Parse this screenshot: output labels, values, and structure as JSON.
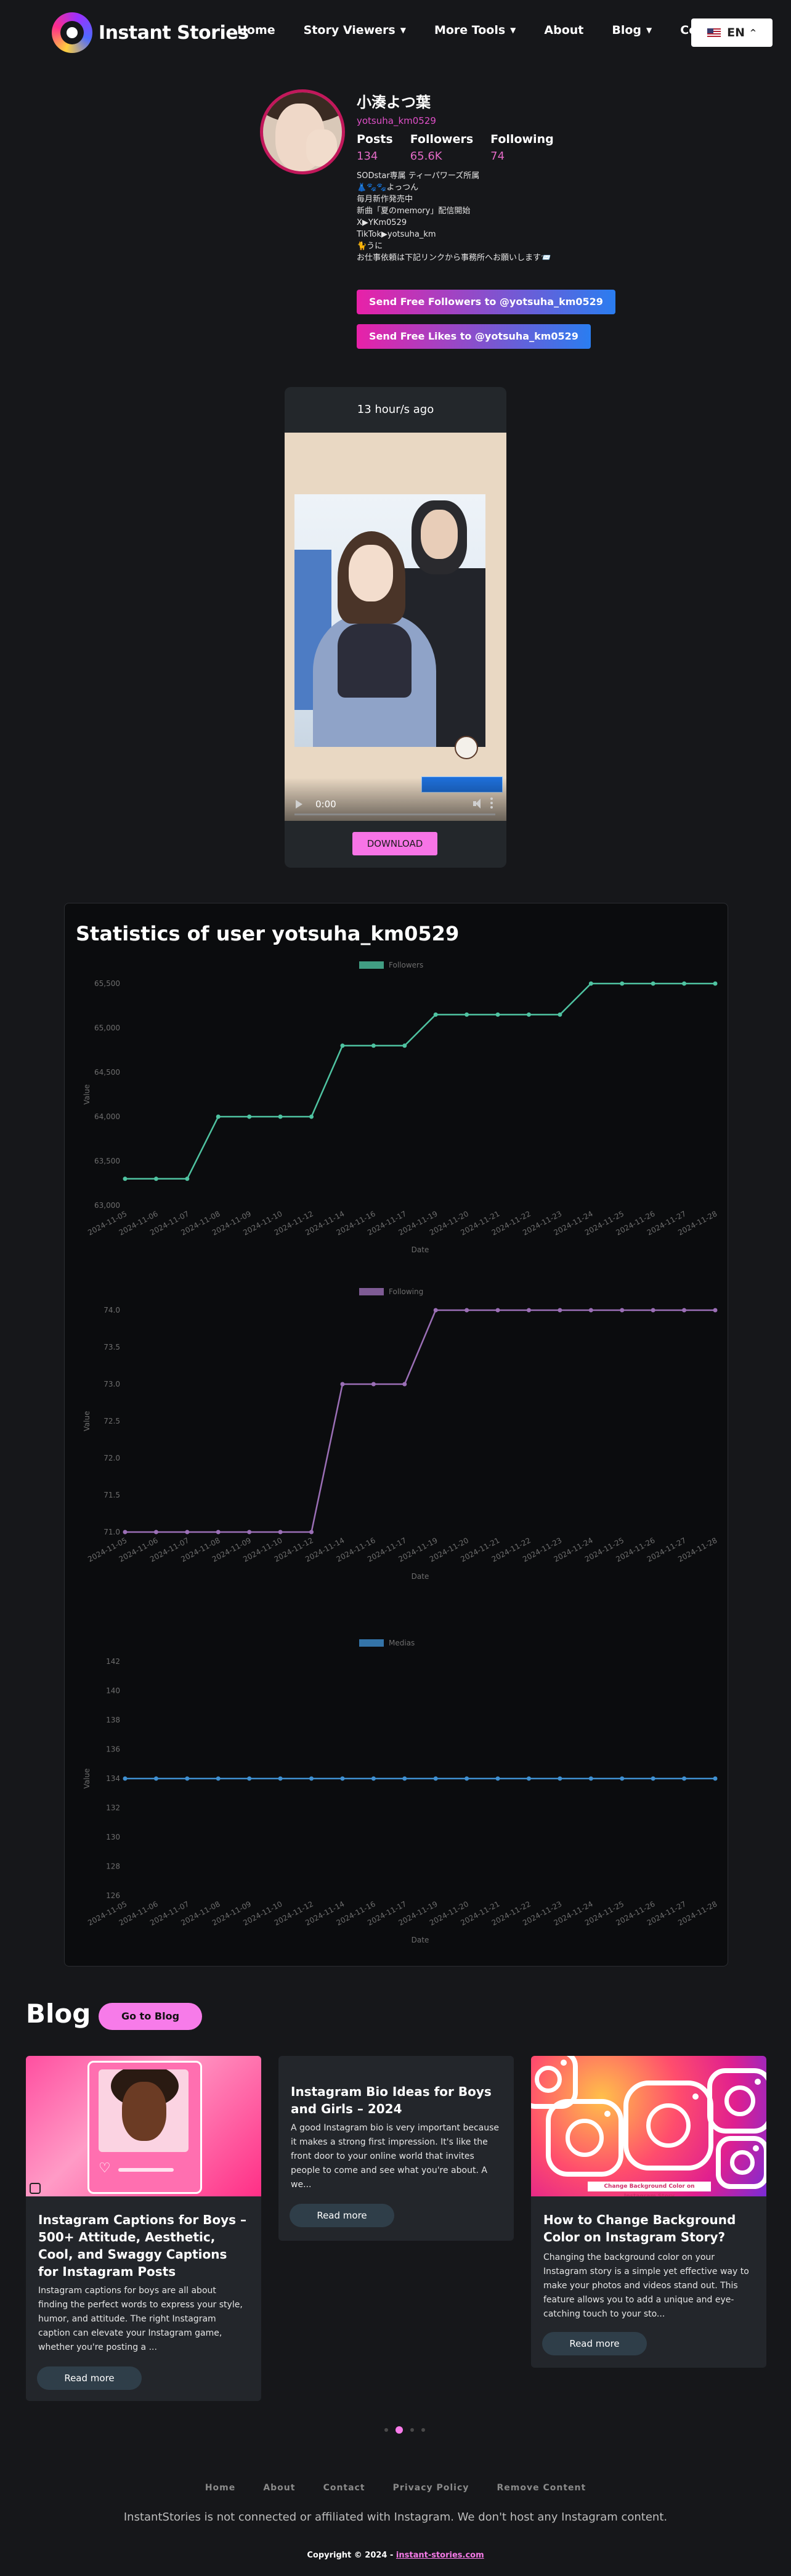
{
  "header": {
    "logo_text": "Instant Stories",
    "nav": [
      {
        "label": "Home",
        "dropdown": false
      },
      {
        "label": "Story Viewers",
        "dropdown": true
      },
      {
        "label": "More Tools",
        "dropdown": true
      },
      {
        "label": "About",
        "dropdown": false
      },
      {
        "label": "Blog",
        "dropdown": true
      },
      {
        "label": "Co",
        "dropdown": false
      }
    ],
    "language": "EN"
  },
  "profile": {
    "name": "小湊よつ葉",
    "handle": "yotsuha_km0529",
    "stats": [
      {
        "label": "Posts",
        "value": "134"
      },
      {
        "label": "Followers",
        "value": "65.6K"
      },
      {
        "label": "Following",
        "value": "74"
      }
    ],
    "bio": [
      "SODstar専属 ティーパワーズ所属",
      "👗🐾🐾よっつん",
      "毎月新作発売中",
      "新曲「夏のmemory」配信開始",
      "X▶YKm0529",
      "TikTok▶yotsuha_km",
      "🐈うに",
      "お仕事依頼は下記リンクから事務所へお願いします📨"
    ],
    "send_followers": "Send Free Followers to @yotsuha_km0529",
    "send_likes": "Send Free Likes to @yotsuha_km0529"
  },
  "story": {
    "time_ago": "13 hour/s ago",
    "video_time": "0:00",
    "download": "DOWNLOAD"
  },
  "statistics": {
    "title": "Statistics of user yotsuha_km0529"
  },
  "chart_data": [
    {
      "type": "line",
      "series": [
        {
          "name": "Followers",
          "color": "#4fc3a1",
          "values": [
            63300,
            63300,
            63300,
            64000,
            64000,
            64000,
            64000,
            64800,
            64800,
            64800,
            65150,
            65150,
            65150,
            65150,
            65150,
            65500,
            65500,
            65500,
            65500,
            65500
          ]
        }
      ],
      "categories": [
        "2024-11-05",
        "2024-11-06",
        "2024-11-07",
        "2024-11-08",
        "2024-11-09",
        "2024-11-10",
        "2024-11-12",
        "2024-11-14",
        "2024-11-16",
        "2024-11-17",
        "2024-11-19",
        "2024-11-20",
        "2024-11-21",
        "2024-11-22",
        "2024-11-23",
        "2024-11-24",
        "2024-11-25",
        "2024-11-26",
        "2024-11-27",
        "2024-11-28"
      ],
      "yticks": [
        "63,000",
        "63,500",
        "64,000",
        "64,500",
        "65,000",
        "65,500"
      ],
      "ylim": [
        63000,
        65500
      ],
      "xlabel": "Date",
      "ylabel": "Value"
    },
    {
      "type": "line",
      "series": [
        {
          "name": "Following",
          "color": "#9b6fb6",
          "values": [
            71,
            71,
            71,
            71,
            71,
            71,
            71,
            73,
            73,
            73,
            74,
            74,
            74,
            74,
            74,
            74,
            74,
            74,
            74,
            74
          ]
        }
      ],
      "categories": [
        "2024-11-05",
        "2024-11-06",
        "2024-11-07",
        "2024-11-08",
        "2024-11-09",
        "2024-11-10",
        "2024-11-12",
        "2024-11-14",
        "2024-11-16",
        "2024-11-17",
        "2024-11-19",
        "2024-11-20",
        "2024-11-21",
        "2024-11-22",
        "2024-11-23",
        "2024-11-24",
        "2024-11-25",
        "2024-11-26",
        "2024-11-27",
        "2024-11-28"
      ],
      "yticks": [
        "71.0",
        "71.5",
        "72.0",
        "72.5",
        "73.0",
        "73.5",
        "74.0"
      ],
      "ylim": [
        71,
        74
      ],
      "xlabel": "Date",
      "ylabel": "Value"
    },
    {
      "type": "line",
      "series": [
        {
          "name": "Medias",
          "color": "#3f8fd0",
          "values": [
            134,
            134,
            134,
            134,
            134,
            134,
            134,
            134,
            134,
            134,
            134,
            134,
            134,
            134,
            134,
            134,
            134,
            134,
            134,
            134
          ]
        }
      ],
      "categories": [
        "2024-11-05",
        "2024-11-06",
        "2024-11-07",
        "2024-11-08",
        "2024-11-09",
        "2024-11-10",
        "2024-11-12",
        "2024-11-14",
        "2024-11-16",
        "2024-11-17",
        "2024-11-19",
        "2024-11-20",
        "2024-11-21",
        "2024-11-22",
        "2024-11-23",
        "2024-11-24",
        "2024-11-25",
        "2024-11-26",
        "2024-11-27",
        "2024-11-28"
      ],
      "yticks": [
        "126",
        "128",
        "130",
        "132",
        "134",
        "136",
        "138",
        "140",
        "142"
      ],
      "ylim": [
        126,
        142
      ],
      "xlabel": "Date",
      "ylabel": "Value"
    }
  ],
  "blog": {
    "title": "Blog",
    "go_button": "Go to Blog",
    "posts": [
      {
        "title": "Instagram Captions for Boys – 500+ Attitude, Aesthetic, Cool, and Swaggy Captions for Instagram Posts",
        "excerpt": "Instagram captions for boys are all about finding the perfect words to express your style, humor, and attitude. The right Instagram caption can elevate your Instagram game, whether you're posting a ...",
        "read_more": "Read more"
      },
      {
        "title": "Instagram Bio Ideas for Boys and Girls – 2024",
        "excerpt": "A good Instagram bio is very important because it makes a strong first impression. It's like the front door to your online world that invites people to come and see what you're about. A we...",
        "read_more": "Read more"
      },
      {
        "title": "How to Change Background Color on Instagram Story?",
        "excerpt": "Changing the background color on your Instagram story is a simple yet effective way to make your photos and videos stand out. This feature allows you to add a unique and eye-catching touch to your sto...",
        "read_more": "Read more",
        "image_caption": "Change Background Color on Instagram Story"
      }
    ]
  },
  "footer": {
    "links": [
      "Home",
      "About",
      "Contact",
      "Privacy Policy",
      "Remove Content"
    ],
    "disclaimer": "InstantStories is not connected or affiliated with Instagram. We don't host any Instagram content.",
    "copyright_prefix": "Copyright © 2024 - ",
    "copyright_link": "instant-stories.com"
  },
  "colors": {
    "background": "#16171a",
    "accent_pink": "#f77be9",
    "handle_pink": "#e050c8",
    "button_gradient": [
      "#e821a8",
      "#2a7df0"
    ]
  },
  "icons": [
    "logo-icon",
    "chevron-down-icon",
    "us-flag-icon",
    "play-icon",
    "volume-icon",
    "more-options-icon",
    "heart-icon",
    "instagram-icon"
  ]
}
